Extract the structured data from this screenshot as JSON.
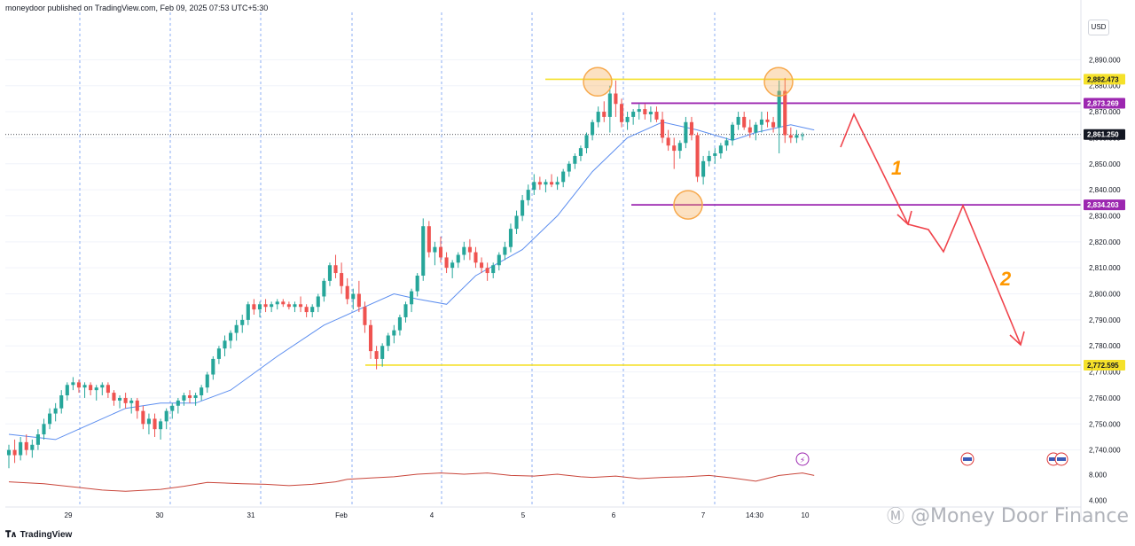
{
  "header": {
    "publish_line": "moneydoor published on TradingView.com, Feb 09, 2025 07:53 UTC+5:30",
    "currency": "USD"
  },
  "footer": {
    "brand": "TradingView",
    "watermark": "@Money Door Finance"
  },
  "colors": {
    "bull": "#26a69a",
    "bear": "#ef5350",
    "ma": "#5b8def",
    "indicator": "#c9453a",
    "yellow_level": "#f5e12a",
    "purple_level": "#9c27b0",
    "arrow": "#f0434b",
    "label_orange": "#ff9800",
    "circle": "#f7a94d"
  },
  "chart_data": {
    "type": "candlestick",
    "symbol_price_axis": {
      "min": 2730,
      "max": 2897,
      "ticks": [
        2740,
        2750,
        2760,
        2770,
        2780,
        2790,
        2800,
        2810,
        2820,
        2830,
        2840,
        2850,
        2860,
        2870,
        2880,
        2890
      ],
      "tick_labels": [
        "2,740.000",
        "2,750.000",
        "2,760.000",
        "2,770.000",
        "2,780.000",
        "2,790.000",
        "2,800.000",
        "2,810.000",
        "2,820.000",
        "2,830.000",
        "2,840.000",
        "2,850.000",
        "2,860.000",
        "2,870.000",
        "2,880.000",
        "2,890.000"
      ]
    },
    "time_axis": {
      "labels": [
        "29",
        "30",
        "31",
        "Feb",
        "4",
        "5",
        "6",
        "7",
        "14:30",
        "10"
      ],
      "session_boundaries": [
        "29",
        "30",
        "31",
        "Feb",
        "4",
        "5",
        "6",
        "7"
      ]
    },
    "indicator_axis": {
      "min": 2.5,
      "max": 9.5,
      "tick_labels": [
        "4.000",
        "8.000"
      ],
      "ticks": [
        4,
        8
      ]
    },
    "price_levels": [
      {
        "price": 2882.473,
        "label": "2,882.473",
        "kind": "yellow"
      },
      {
        "price": 2873.269,
        "label": "2,873.269",
        "kind": "purple"
      },
      {
        "price": 2861.25,
        "label": "2,861.250",
        "kind": "current"
      },
      {
        "price": 2834.203,
        "label": "2,834.203",
        "kind": "purple"
      },
      {
        "price": 2772.595,
        "label": "2,772.595",
        "kind": "yellow"
      }
    ],
    "candles_ohlc": [
      [
        2738,
        2742,
        2733,
        2740
      ],
      [
        2740,
        2744,
        2735,
        2738
      ],
      [
        2738,
        2745,
        2736,
        2743
      ],
      [
        2743,
        2746,
        2738,
        2740
      ],
      [
        2740,
        2744,
        2737,
        2742
      ],
      [
        2742,
        2748,
        2740,
        2746
      ],
      [
        2746,
        2752,
        2744,
        2750
      ],
      [
        2750,
        2756,
        2748,
        2754
      ],
      [
        2754,
        2758,
        2751,
        2756
      ],
      [
        2756,
        2763,
        2754,
        2761
      ],
      [
        2761,
        2766,
        2759,
        2765
      ],
      [
        2765,
        2768,
        2763,
        2766
      ],
      [
        2766,
        2767,
        2762,
        2764
      ],
      [
        2764,
        2766,
        2760,
        2765
      ],
      [
        2765,
        2766,
        2761,
        2763
      ],
      [
        2763,
        2765,
        2759,
        2764
      ],
      [
        2764,
        2766,
        2761,
        2765
      ],
      [
        2765,
        2766,
        2760,
        2762
      ],
      [
        2762,
        2763,
        2757,
        2759
      ],
      [
        2759,
        2761,
        2756,
        2760
      ],
      [
        2760,
        2762,
        2756,
        2758
      ],
      [
        2758,
        2760,
        2754,
        2759
      ],
      [
        2759,
        2760,
        2752,
        2755
      ],
      [
        2755,
        2757,
        2748,
        2750
      ],
      [
        2750,
        2754,
        2746,
        2752
      ],
      [
        2752,
        2754,
        2745,
        2748
      ],
      [
        2748,
        2752,
        2744,
        2751
      ],
      [
        2751,
        2756,
        2748,
        2755
      ],
      [
        2755,
        2758,
        2752,
        2757
      ],
      [
        2757,
        2760,
        2754,
        2759
      ],
      [
        2759,
        2762,
        2757,
        2761
      ],
      [
        2761,
        2763,
        2758,
        2760
      ],
      [
        2760,
        2762,
        2757,
        2761
      ],
      [
        2761,
        2765,
        2759,
        2764
      ],
      [
        2764,
        2770,
        2762,
        2769
      ],
      [
        2769,
        2776,
        2767,
        2775
      ],
      [
        2775,
        2780,
        2773,
        2779
      ],
      [
        2779,
        2784,
        2776,
        2782
      ],
      [
        2782,
        2786,
        2779,
        2785
      ],
      [
        2785,
        2790,
        2782,
        2788
      ],
      [
        2788,
        2792,
        2785,
        2790
      ],
      [
        2790,
        2797,
        2788,
        2796
      ],
      [
        2796,
        2798,
        2792,
        2794
      ],
      [
        2794,
        2797,
        2791,
        2796
      ],
      [
        2796,
        2798,
        2793,
        2795
      ],
      [
        2795,
        2797,
        2793,
        2796
      ],
      [
        2796,
        2798,
        2794,
        2797
      ],
      [
        2797,
        2798,
        2795,
        2796
      ],
      [
        2796,
        2797,
        2794,
        2795
      ],
      [
        2795,
        2797,
        2793,
        2796
      ],
      [
        2796,
        2799,
        2793,
        2795
      ],
      [
        2795,
        2796,
        2791,
        2793
      ],
      [
        2793,
        2796,
        2791,
        2795
      ],
      [
        2795,
        2800,
        2793,
        2799
      ],
      [
        2799,
        2806,
        2797,
        2805
      ],
      [
        2805,
        2812,
        2803,
        2811
      ],
      [
        2811,
        2815,
        2806,
        2808
      ],
      [
        2808,
        2812,
        2800,
        2803
      ],
      [
        2803,
        2806,
        2796,
        2798
      ],
      [
        2798,
        2802,
        2794,
        2800
      ],
      [
        2800,
        2805,
        2793,
        2795
      ],
      [
        2795,
        2797,
        2785,
        2788
      ],
      [
        2788,
        2790,
        2775,
        2778
      ],
      [
        2778,
        2780,
        2771,
        2775
      ],
      [
        2775,
        2781,
        2772,
        2780
      ],
      [
        2780,
        2785,
        2778,
        2784
      ],
      [
        2784,
        2788,
        2781,
        2786
      ],
      [
        2786,
        2792,
        2784,
        2791
      ],
      [
        2791,
        2797,
        2789,
        2796
      ],
      [
        2796,
        2802,
        2793,
        2801
      ],
      [
        2801,
        2808,
        2799,
        2807
      ],
      [
        2807,
        2829,
        2805,
        2826
      ],
      [
        2826,
        2828,
        2814,
        2816
      ],
      [
        2816,
        2820,
        2811,
        2818
      ],
      [
        2818,
        2822,
        2812,
        2814
      ],
      [
        2814,
        2816,
        2808,
        2810
      ],
      [
        2810,
        2813,
        2806,
        2812
      ],
      [
        2812,
        2816,
        2810,
        2815
      ],
      [
        2815,
        2820,
        2813,
        2818
      ],
      [
        2818,
        2821,
        2813,
        2816
      ],
      [
        2816,
        2818,
        2810,
        2812
      ],
      [
        2812,
        2814,
        2808,
        2810
      ],
      [
        2810,
        2812,
        2805,
        2808
      ],
      [
        2808,
        2812,
        2806,
        2811
      ],
      [
        2811,
        2816,
        2809,
        2815
      ],
      [
        2815,
        2820,
        2813,
        2818
      ],
      [
        2818,
        2827,
        2816,
        2825
      ],
      [
        2825,
        2832,
        2823,
        2830
      ],
      [
        2830,
        2838,
        2828,
        2836
      ],
      [
        2836,
        2842,
        2834,
        2840
      ],
      [
        2840,
        2846,
        2838,
        2843
      ],
      [
        2843,
        2845,
        2840,
        2842
      ],
      [
        2842,
        2844,
        2839,
        2843
      ],
      [
        2843,
        2846,
        2841,
        2842
      ],
      [
        2842,
        2845,
        2840,
        2843
      ],
      [
        2843,
        2848,
        2841,
        2847
      ],
      [
        2847,
        2851,
        2845,
        2850
      ],
      [
        2850,
        2854,
        2848,
        2853
      ],
      [
        2853,
        2857,
        2851,
        2856
      ],
      [
        2856,
        2862,
        2854,
        2861
      ],
      [
        2861,
        2867,
        2859,
        2866
      ],
      [
        2866,
        2872,
        2864,
        2870
      ],
      [
        2870,
        2874,
        2866,
        2868
      ],
      [
        2868,
        2880,
        2862,
        2877
      ],
      [
        2877,
        2882,
        2868,
        2873
      ],
      [
        2873,
        2875,
        2864,
        2866
      ],
      [
        2866,
        2870,
        2863,
        2868
      ],
      [
        2868,
        2871,
        2865,
        2870
      ],
      [
        2870,
        2873,
        2867,
        2871
      ],
      [
        2871,
        2873,
        2867,
        2869
      ],
      [
        2869,
        2872,
        2866,
        2870
      ],
      [
        2870,
        2872,
        2866,
        2867
      ],
      [
        2867,
        2870,
        2858,
        2860
      ],
      [
        2860,
        2863,
        2855,
        2857
      ],
      [
        2857,
        2860,
        2848,
        2855
      ],
      [
        2855,
        2859,
        2852,
        2858
      ],
      [
        2858,
        2868,
        2856,
        2866
      ],
      [
        2866,
        2868,
        2859,
        2861
      ],
      [
        2861,
        2862,
        2843,
        2845
      ],
      [
        2845,
        2853,
        2842,
        2851
      ],
      [
        2851,
        2855,
        2849,
        2853
      ],
      [
        2853,
        2856,
        2850,
        2854
      ],
      [
        2854,
        2858,
        2852,
        2857
      ],
      [
        2857,
        2860,
        2855,
        2859
      ],
      [
        2859,
        2866,
        2857,
        2865
      ],
      [
        2865,
        2870,
        2863,
        2868
      ],
      [
        2868,
        2870,
        2863,
        2864
      ],
      [
        2864,
        2867,
        2860,
        2862
      ],
      [
        2862,
        2866,
        2859,
        2865
      ],
      [
        2865,
        2870,
        2862,
        2867
      ],
      [
        2867,
        2870,
        2864,
        2866
      ],
      [
        2866,
        2868,
        2862,
        2864
      ],
      [
        2864,
        2882,
        2854,
        2878
      ],
      [
        2878,
        2883,
        2858,
        2861
      ],
      [
        2861,
        2864,
        2858,
        2860
      ],
      [
        2860,
        2863,
        2858,
        2861
      ],
      [
        2861,
        2862,
        2859,
        2861
      ]
    ],
    "moving_average_points": [
      [
        0,
        2746
      ],
      [
        8,
        2744
      ],
      [
        14,
        2750
      ],
      [
        20,
        2756
      ],
      [
        26,
        2758
      ],
      [
        32,
        2758
      ],
      [
        38,
        2763
      ],
      [
        46,
        2776
      ],
      [
        54,
        2788
      ],
      [
        60,
        2794
      ],
      [
        66,
        2800
      ],
      [
        70,
        2798
      ],
      [
        75,
        2796
      ],
      [
        80,
        2807
      ],
      [
        88,
        2817
      ],
      [
        94,
        2830
      ],
      [
        100,
        2847
      ],
      [
        106,
        2860
      ],
      [
        112,
        2866
      ],
      [
        118,
        2863
      ],
      [
        124,
        2859
      ],
      [
        128,
        2862
      ],
      [
        134,
        2865
      ],
      [
        138,
        2863
      ]
    ],
    "indicator_points": [
      [
        0,
        6.9
      ],
      [
        6,
        6.6
      ],
      [
        12,
        6.0
      ],
      [
        16,
        5.6
      ],
      [
        20,
        5.4
      ],
      [
        26,
        5.7
      ],
      [
        30,
        6.2
      ],
      [
        34,
        6.8
      ],
      [
        40,
        6.6
      ],
      [
        44,
        6.5
      ],
      [
        48,
        6.3
      ],
      [
        52,
        6.5
      ],
      [
        56,
        6.9
      ],
      [
        58,
        7.3
      ],
      [
        62,
        7.5
      ],
      [
        66,
        7.7
      ],
      [
        70,
        8.1
      ],
      [
        74,
        8.3
      ],
      [
        78,
        8.1
      ],
      [
        82,
        8.3
      ],
      [
        86,
        7.9
      ],
      [
        90,
        7.8
      ],
      [
        94,
        8.1
      ],
      [
        98,
        7.7
      ],
      [
        100,
        7.6
      ],
      [
        104,
        7.8
      ],
      [
        108,
        7.4
      ],
      [
        112,
        7.6
      ],
      [
        116,
        7.7
      ],
      [
        120,
        7.9
      ],
      [
        124,
        7.5
      ],
      [
        128,
        7.0
      ],
      [
        132,
        7.9
      ],
      [
        136,
        8.3
      ],
      [
        138,
        7.9
      ]
    ],
    "annotations": {
      "labels": [
        "1",
        "2"
      ],
      "scenario_arrow_points": [
        [
          2858,
          146
        ],
        [
          2870,
          160
        ],
        [
          2830,
          191
        ],
        [
          2813,
          208
        ],
        [
          2834,
          222
        ],
        [
          2780,
          256
        ]
      ]
    }
  }
}
